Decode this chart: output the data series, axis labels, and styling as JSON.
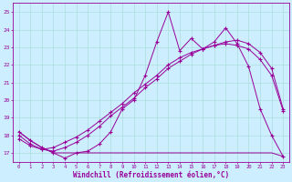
{
  "xlabel": "Windchill (Refroidissement éolien,°C)",
  "bg_color": "#cceeff",
  "grid_color": "#aadddd",
  "line_color": "#990099",
  "x_ticks": [
    0,
    1,
    2,
    3,
    4,
    5,
    6,
    7,
    8,
    9,
    10,
    11,
    12,
    13,
    14,
    15,
    16,
    17,
    18,
    19,
    20,
    21,
    22,
    23
  ],
  "ylim": [
    16.5,
    25.5
  ],
  "xlim": [
    -0.5,
    23.5
  ],
  "yticks": [
    17,
    18,
    19,
    20,
    21,
    22,
    23,
    24,
    25
  ],
  "series1": [
    18.2,
    17.7,
    17.3,
    17.0,
    16.7,
    17.0,
    17.1,
    17.5,
    18.2,
    19.5,
    20.0,
    21.4,
    23.3,
    25.0,
    22.8,
    23.5,
    22.9,
    23.3,
    24.1,
    23.2,
    21.9,
    19.5,
    18.0,
    16.8
  ],
  "series2": [
    18.0,
    17.5,
    17.2,
    17.1,
    17.3,
    17.6,
    18.0,
    18.5,
    19.1,
    19.6,
    20.1,
    20.7,
    21.2,
    21.8,
    22.2,
    22.6,
    22.9,
    23.1,
    23.3,
    23.4,
    23.2,
    22.7,
    21.8,
    19.5
  ],
  "series3": [
    17.8,
    17.4,
    17.2,
    17.3,
    17.6,
    17.9,
    18.3,
    18.8,
    19.3,
    19.8,
    20.4,
    20.9,
    21.4,
    22.0,
    22.4,
    22.7,
    22.9,
    23.1,
    23.2,
    23.1,
    22.9,
    22.3,
    21.4,
    19.4
  ],
  "series4": [
    18.2,
    17.7,
    17.3,
    17.0,
    17.0,
    17.0,
    17.0,
    17.0,
    17.0,
    17.0,
    17.0,
    17.0,
    17.0,
    17.0,
    17.0,
    17.0,
    17.0,
    17.0,
    17.0,
    17.0,
    17.0,
    17.0,
    17.0,
    16.8
  ]
}
